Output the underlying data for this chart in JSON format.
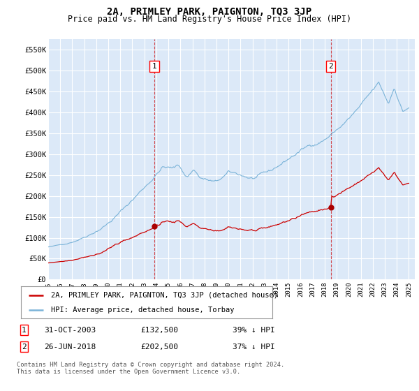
{
  "title": "2A, PRIMLEY PARK, PAIGNTON, TQ3 3JP",
  "subtitle": "Price paid vs. HM Land Registry's House Price Index (HPI)",
  "ylim": [
    0,
    575000
  ],
  "yticks": [
    0,
    50000,
    100000,
    150000,
    200000,
    250000,
    300000,
    350000,
    400000,
    450000,
    500000,
    550000
  ],
  "ytick_labels": [
    "£0",
    "£50K",
    "£100K",
    "£150K",
    "£200K",
    "£250K",
    "£300K",
    "£350K",
    "£400K",
    "£450K",
    "£500K",
    "£550K"
  ],
  "plot_bg": "#dce9f8",
  "hpi_color": "#7ab3d8",
  "price_color": "#cc0000",
  "legend_line1": "2A, PRIMLEY PARK, PAIGNTON, TQ3 3JP (detached house)",
  "legend_line2": "HPI: Average price, detached house, Torbay",
  "table_row1": [
    "1",
    "31-OCT-2003",
    "£132,500",
    "39% ↓ HPI"
  ],
  "table_row2": [
    "2",
    "26-JUN-2018",
    "£202,500",
    "37% ↓ HPI"
  ],
  "footer": "Contains HM Land Registry data © Crown copyright and database right 2024.\nThis data is licensed under the Open Government Licence v3.0.",
  "sale1_year": 2003.83,
  "sale1_price": 132500,
  "sale2_year": 2018.5,
  "sale2_price": 202500
}
